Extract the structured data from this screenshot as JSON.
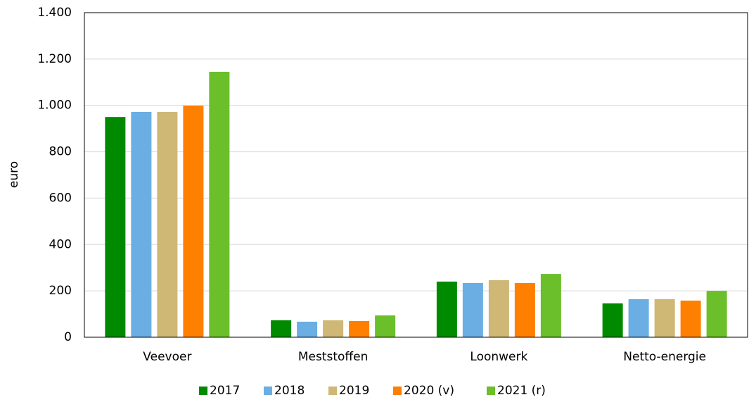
{
  "chart_data": {
    "type": "bar",
    "y_label": "euro",
    "categories": [
      "Veevoer",
      "Meststoffen",
      "Loonwerk",
      "Netto-energie"
    ],
    "series": [
      {
        "name": "2017",
        "color": "#008a00",
        "values": [
          950,
          73,
          240,
          146
        ]
      },
      {
        "name": "2018",
        "color": "#6aaee3",
        "values": [
          972,
          67,
          234,
          164
        ]
      },
      {
        "name": "2019",
        "color": "#cfb775",
        "values": [
          972,
          73,
          246,
          164
        ]
      },
      {
        "name": "2020 (v)",
        "color": "#ff7f00",
        "values": [
          999,
          70,
          234,
          158
        ]
      },
      {
        "name": "2021 (r)",
        "color": "#6bbf2a",
        "values": [
          1145,
          94,
          273,
          200
        ]
      }
    ],
    "ylim": [
      0,
      1400
    ],
    "yticks": [
      0,
      200,
      400,
      600,
      800,
      {
        "value": 1000,
        "label": "1.000"
      },
      {
        "value": 1200,
        "label": "1.200"
      },
      {
        "value": 1400,
        "label": "1.400"
      }
    ],
    "grid": true,
    "legend": "bottom"
  }
}
